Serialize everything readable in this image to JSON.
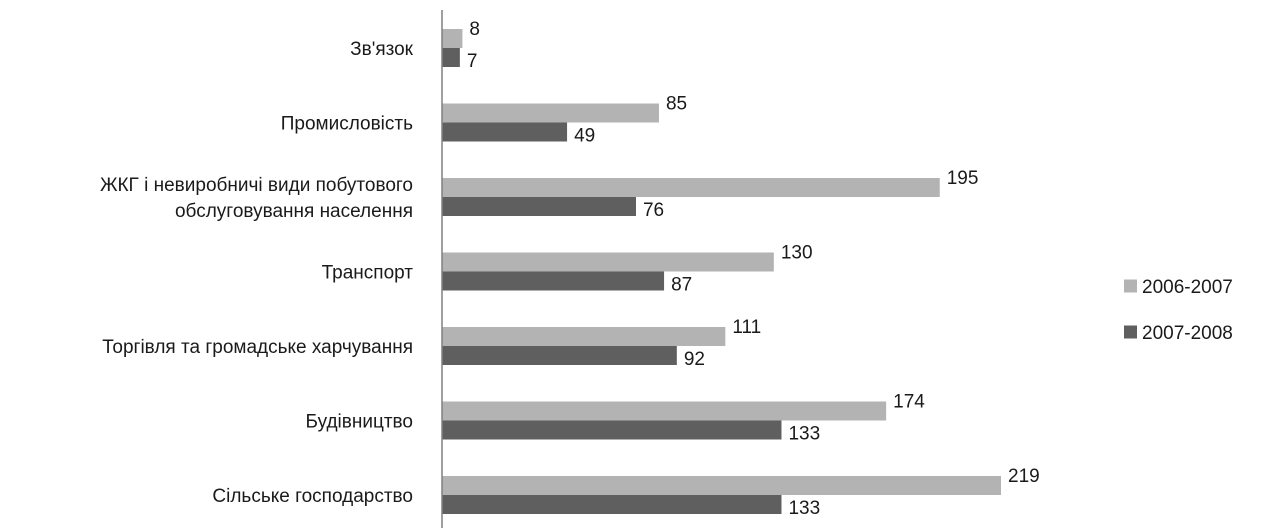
{
  "chart_data": {
    "type": "bar",
    "orientation": "horizontal",
    "categories": [
      [
        "Зв'язок"
      ],
      [
        "Промисловість"
      ],
      [
        "ЖКГ і невиробничі види побутового",
        "обслуговування населення"
      ],
      [
        "Транспорт"
      ],
      [
        "Торгівля та громадське харчування"
      ],
      [
        "Будівництво"
      ],
      [
        "Сільське господарство"
      ]
    ],
    "series": [
      {
        "name": "2006-2007",
        "color": "#b3b3b3",
        "values": [
          8,
          85,
          195,
          130,
          111,
          174,
          219
        ]
      },
      {
        "name": "2007-2008",
        "color": "#5f5f5f",
        "values": [
          7,
          49,
          76,
          87,
          92,
          133,
          133
        ]
      }
    ],
    "xlim": [
      0,
      219
    ],
    "grid": false,
    "legend_position": "right",
    "axis_color": "#808080"
  }
}
